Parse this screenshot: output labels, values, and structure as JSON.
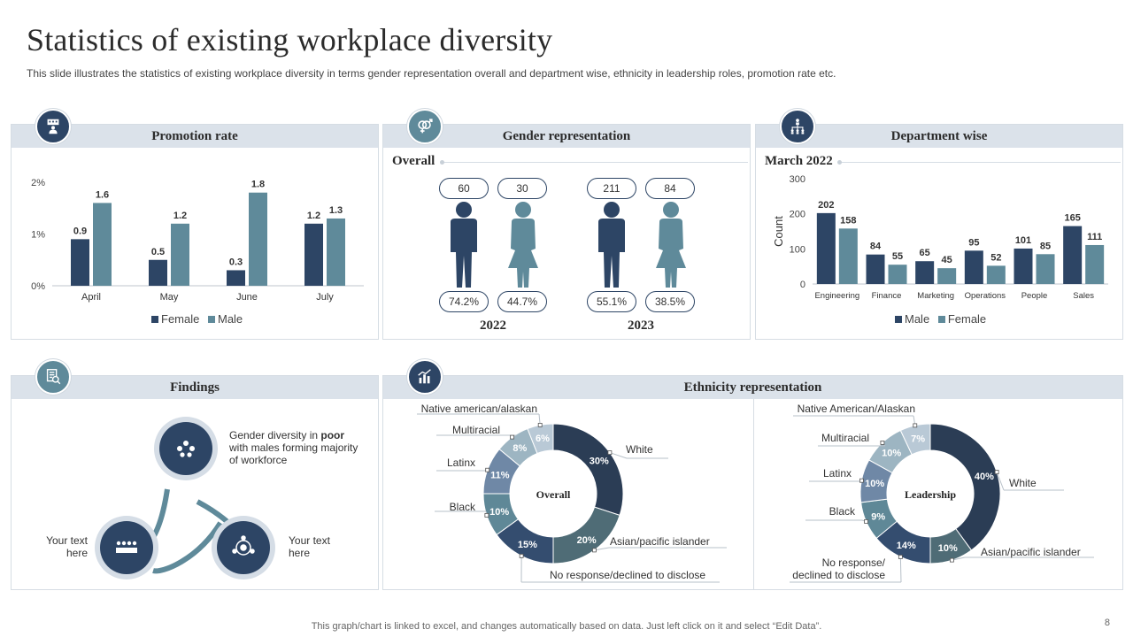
{
  "header": {
    "title": "Statistics of existing workplace diversity",
    "subtitle": "This slide illustrates the statistics of existing workplace diversity in terms gender representation overall and department wise, ethnicity in leadership roles, promotion rate etc."
  },
  "panels": {
    "promotion": {
      "title": "Promotion  rate",
      "icon": "presenter-icon"
    },
    "gender": {
      "title": "Gender representation",
      "subtitle": "Overall",
      "icon": "gender-symbol-icon"
    },
    "department": {
      "title": "Department wise",
      "subtitle": "March 2022",
      "icon": "org-chart-icon"
    },
    "findings": {
      "title": "Findings",
      "icon": "report-search-icon"
    },
    "ethnicity": {
      "title": "Ethnicity  representation",
      "icon": "bar-chart-icon"
    }
  },
  "gender": {
    "groups": [
      {
        "year": "2022",
        "male_count": "60",
        "female_count": "30",
        "male_pct": "74.2%",
        "female_pct": "44.7%"
      },
      {
        "year": "2023",
        "male_count": "211",
        "female_count": "84",
        "male_pct": "55.1%",
        "female_pct": "38.5%"
      }
    ]
  },
  "findings": {
    "top": {
      "text_before": "Gender diversity in ",
      "text_bold": "poor",
      "text_after": " with males forming majority of workforce"
    },
    "left": "Your text here",
    "right": "Your text here"
  },
  "footer": {
    "note": "This graph/chart is linked to excel,  and changes automatically based on data. Just left click on it and select “Edit Data”.",
    "page": "8"
  },
  "colors": {
    "navy": "#2d4565",
    "teal": "#5f8a9a",
    "panel_head": "#dbe2ea"
  },
  "chart_data": [
    {
      "id": "promotion",
      "type": "bar",
      "categories": [
        "April",
        "May",
        "June",
        "July"
      ],
      "series": [
        {
          "name": "Female",
          "values": [
            0.9,
            0.5,
            0.3,
            1.2
          ],
          "color": "#2d4565"
        },
        {
          "name": "Male",
          "values": [
            1.6,
            1.2,
            1.8,
            1.3
          ],
          "color": "#5f8a9a"
        }
      ],
      "ylim": [
        0,
        2
      ],
      "yticks": [
        "0%",
        "1%",
        "2%"
      ],
      "legend": "bottom"
    },
    {
      "id": "department",
      "type": "bar",
      "categories": [
        "Engineering",
        "Finance",
        "Marketing",
        "Operations",
        "People",
        "Sales"
      ],
      "series": [
        {
          "name": "Male",
          "values": [
            202,
            84,
            65,
            95,
            101,
            165
          ],
          "color": "#2d4565"
        },
        {
          "name": "Female",
          "values": [
            158,
            55,
            45,
            52,
            85,
            111
          ],
          "color": "#5f8a9a"
        }
      ],
      "ylabel": "Count",
      "ylim": [
        0,
        300
      ],
      "yticks": [
        "0",
        "100",
        "200",
        "300"
      ],
      "legend": "bottom"
    },
    {
      "id": "ethnicity-overall",
      "type": "pie",
      "center_label": "Overall",
      "slices": [
        {
          "label": "White",
          "value": 30,
          "color": "#2b3d55"
        },
        {
          "label": "Asian/pacific islander",
          "value": 20,
          "color": "#4f6c76"
        },
        {
          "label": "No response/declined to disclose",
          "value": 15,
          "color": "#344d6f"
        },
        {
          "label": "Black",
          "value": 10,
          "color": "#5f8897"
        },
        {
          "label": "Latinx",
          "value": 11,
          "color": "#6f88a6"
        },
        {
          "label": "Multiracial",
          "value": 8,
          "color": "#9db5c2"
        },
        {
          "label": "Native american/alaskan",
          "value": 6,
          "color": "#b9c9d6"
        }
      ]
    },
    {
      "id": "ethnicity-leadership",
      "type": "pie",
      "center_label": "Leadership",
      "slices": [
        {
          "label": "White",
          "value": 40,
          "color": "#2b3d55"
        },
        {
          "label": "Asian/pacific islander",
          "value": 10,
          "color": "#4f6c76"
        },
        {
          "label": "No response/ declined to disclose",
          "value": 14,
          "color": "#344d6f"
        },
        {
          "label": "Black",
          "value": 9,
          "color": "#5f8897"
        },
        {
          "label": "Latinx",
          "value": 10,
          "color": "#6f88a6"
        },
        {
          "label": "Multiracial",
          "value": 10,
          "color": "#9db5c2"
        },
        {
          "label": "Native American/Alaskan",
          "value": 7,
          "color": "#b9c9d6"
        }
      ]
    }
  ]
}
